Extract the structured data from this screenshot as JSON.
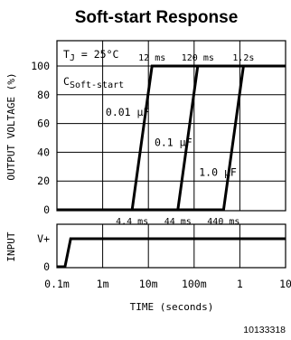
{
  "chart_data": {
    "type": "line",
    "title": "Soft-start Response",
    "figure_id": "10133318",
    "xlabel": "TIME (seconds)",
    "x_scale": "log",
    "xlim": [
      0.0001,
      10
    ],
    "x_ticks": [
      {
        "value": 0.0001,
        "label": "0.1m"
      },
      {
        "value": 0.001,
        "label": "1m"
      },
      {
        "value": 0.01,
        "label": "10m"
      },
      {
        "value": 0.1,
        "label": "100m"
      },
      {
        "value": 1,
        "label": "1"
      },
      {
        "value": 10,
        "label": "10"
      }
    ],
    "top_panel": {
      "ylabel": "OUTPUT VOLTAGE (%)",
      "ylim": [
        0,
        100
      ],
      "y_ticks": [
        0,
        20,
        40,
        60,
        80,
        100
      ],
      "annotations": {
        "tj": "T",
        "tj_sub": "J",
        "tj_val": " = 25°C",
        "c_main": "C",
        "c_sub": "Soft-start"
      },
      "series": [
        {
          "name": "0.01 µF",
          "x": [
            0.0001,
            0.0044,
            0.012,
            10
          ],
          "y": [
            0,
            0,
            100,
            100
          ],
          "start_label": "4.4 ms",
          "end_label": "12 ms",
          "label_x": 0.0035,
          "label_y": 68
        },
        {
          "name": "0.1 µF",
          "x": [
            0.0001,
            0.044,
            0.12,
            10
          ],
          "y": [
            0,
            0,
            100,
            100
          ],
          "start_label": "44 ms",
          "end_label": "120 ms",
          "label_x": 0.035,
          "label_y": 47
        },
        {
          "name": "1.0 µF",
          "x": [
            0.0001,
            0.44,
            1.2,
            10
          ],
          "y": [
            0,
            0,
            100,
            100
          ],
          "start_label": "440 ms",
          "end_label": "1.2s",
          "label_x": 0.33,
          "label_y": 26
        }
      ]
    },
    "bottom_panel": {
      "ylabel": "INPUT",
      "y_ticks": [
        {
          "value": 0,
          "label": "0"
        },
        {
          "value": 1,
          "label": "V+"
        }
      ],
      "series": [
        {
          "name": "",
          "x": [
            0.0001,
            0.00015,
            0.0002,
            10
          ],
          "y": [
            0,
            0,
            1,
            1
          ]
        }
      ]
    }
  }
}
